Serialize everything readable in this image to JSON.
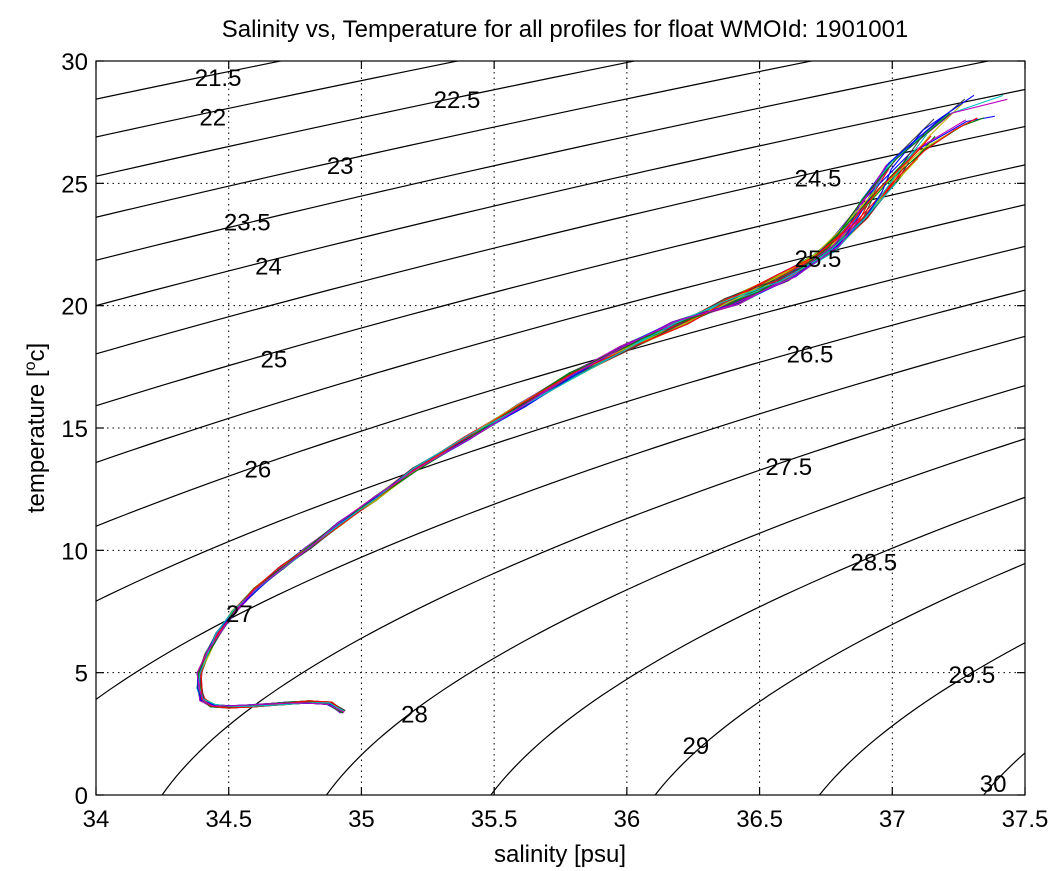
{
  "chart_data": {
    "type": "line",
    "title": "Salinity vs, Temperature for all profiles for float WMOId: 1901001",
    "xlabel": "salinity [psu]",
    "ylabel_main": "temperature [",
    "ylabel_sup": "o",
    "ylabel_end": "c]",
    "xlim": [
      34,
      37.5
    ],
    "ylim": [
      0,
      30
    ],
    "grid": true,
    "xticks": [
      34,
      34.5,
      35,
      35.5,
      36,
      36.5,
      37,
      37.5
    ],
    "yticks": [
      0,
      5,
      10,
      15,
      20,
      25,
      30
    ],
    "xtick_labels": [
      "34",
      "34.5",
      "35",
      "35.5",
      "36",
      "36.5",
      "37",
      "37.5"
    ],
    "ytick_labels": [
      "0",
      "5",
      "10",
      "15",
      "20",
      "25",
      "30"
    ],
    "density_contours": {
      "levels": [
        21.5,
        22,
        22.5,
        23,
        23.5,
        24,
        24.5,
        25,
        25.5,
        26,
        26.5,
        27,
        27.5,
        28,
        28.5,
        29,
        29.5,
        30
      ],
      "labels": [
        {
          "text": "21.5",
          "s": 34.46,
          "t": 29.3
        },
        {
          "text": "22",
          "s": 34.44,
          "t": 27.7
        },
        {
          "text": "22.5",
          "s": 35.36,
          "t": 28.4
        },
        {
          "text": "23",
          "s": 34.92,
          "t": 25.7
        },
        {
          "text": "23.5",
          "s": 34.57,
          "t": 23.4
        },
        {
          "text": "24",
          "s": 34.65,
          "t": 21.6
        },
        {
          "text": "24.5",
          "s": 36.72,
          "t": 25.2
        },
        {
          "text": "25",
          "s": 34.67,
          "t": 17.8
        },
        {
          "text": "25.5",
          "s": 36.72,
          "t": 21.9
        },
        {
          "text": "26",
          "s": 34.61,
          "t": 13.3
        },
        {
          "text": "26.5",
          "s": 36.69,
          "t": 18.0
        },
        {
          "text": "27",
          "s": 34.54,
          "t": 7.4
        },
        {
          "text": "27.5",
          "s": 36.61,
          "t": 13.4
        },
        {
          "text": "28",
          "s": 35.2,
          "t": 3.3
        },
        {
          "text": "28.5",
          "s": 36.93,
          "t": 9.5
        },
        {
          "text": "29",
          "s": 36.26,
          "t": 2.0
        },
        {
          "text": "29.5",
          "s": 37.3,
          "t": 4.9
        },
        {
          "text": "30",
          "s": 37.38,
          "t": 0.45
        }
      ]
    },
    "series_colors": [
      "#0000ff",
      "#008000",
      "#ff0000",
      "#00bfbf",
      "#bf00bf",
      "#bfbf00",
      "#404040"
    ],
    "profile_path": [
      [
        34.93,
        3.4
      ],
      [
        34.88,
        3.75
      ],
      [
        34.8,
        3.8
      ],
      [
        34.72,
        3.75
      ],
      [
        34.6,
        3.65
      ],
      [
        34.5,
        3.6
      ],
      [
        34.44,
        3.65
      ],
      [
        34.4,
        3.9
      ],
      [
        34.39,
        4.4
      ],
      [
        34.39,
        5.0
      ],
      [
        34.42,
        5.8
      ],
      [
        34.46,
        6.6
      ],
      [
        34.52,
        7.5
      ],
      [
        34.6,
        8.4
      ],
      [
        34.7,
        9.3
      ],
      [
        34.8,
        10.1
      ],
      [
        34.92,
        11.1
      ],
      [
        35.05,
        12.1
      ],
      [
        35.2,
        13.3
      ],
      [
        35.4,
        14.6
      ],
      [
        35.6,
        15.9
      ],
      [
        35.8,
        17.2
      ],
      [
        36.0,
        18.3
      ],
      [
        36.2,
        19.3
      ],
      [
        36.4,
        20.2
      ],
      [
        36.6,
        21.2
      ],
      [
        36.75,
        22.2
      ],
      [
        36.85,
        23.3
      ],
      [
        36.95,
        24.7
      ],
      [
        37.05,
        26.0
      ],
      [
        37.2,
        27.4
      ],
      [
        37.35,
        28.2
      ]
    ],
    "profile_count": 40
  }
}
